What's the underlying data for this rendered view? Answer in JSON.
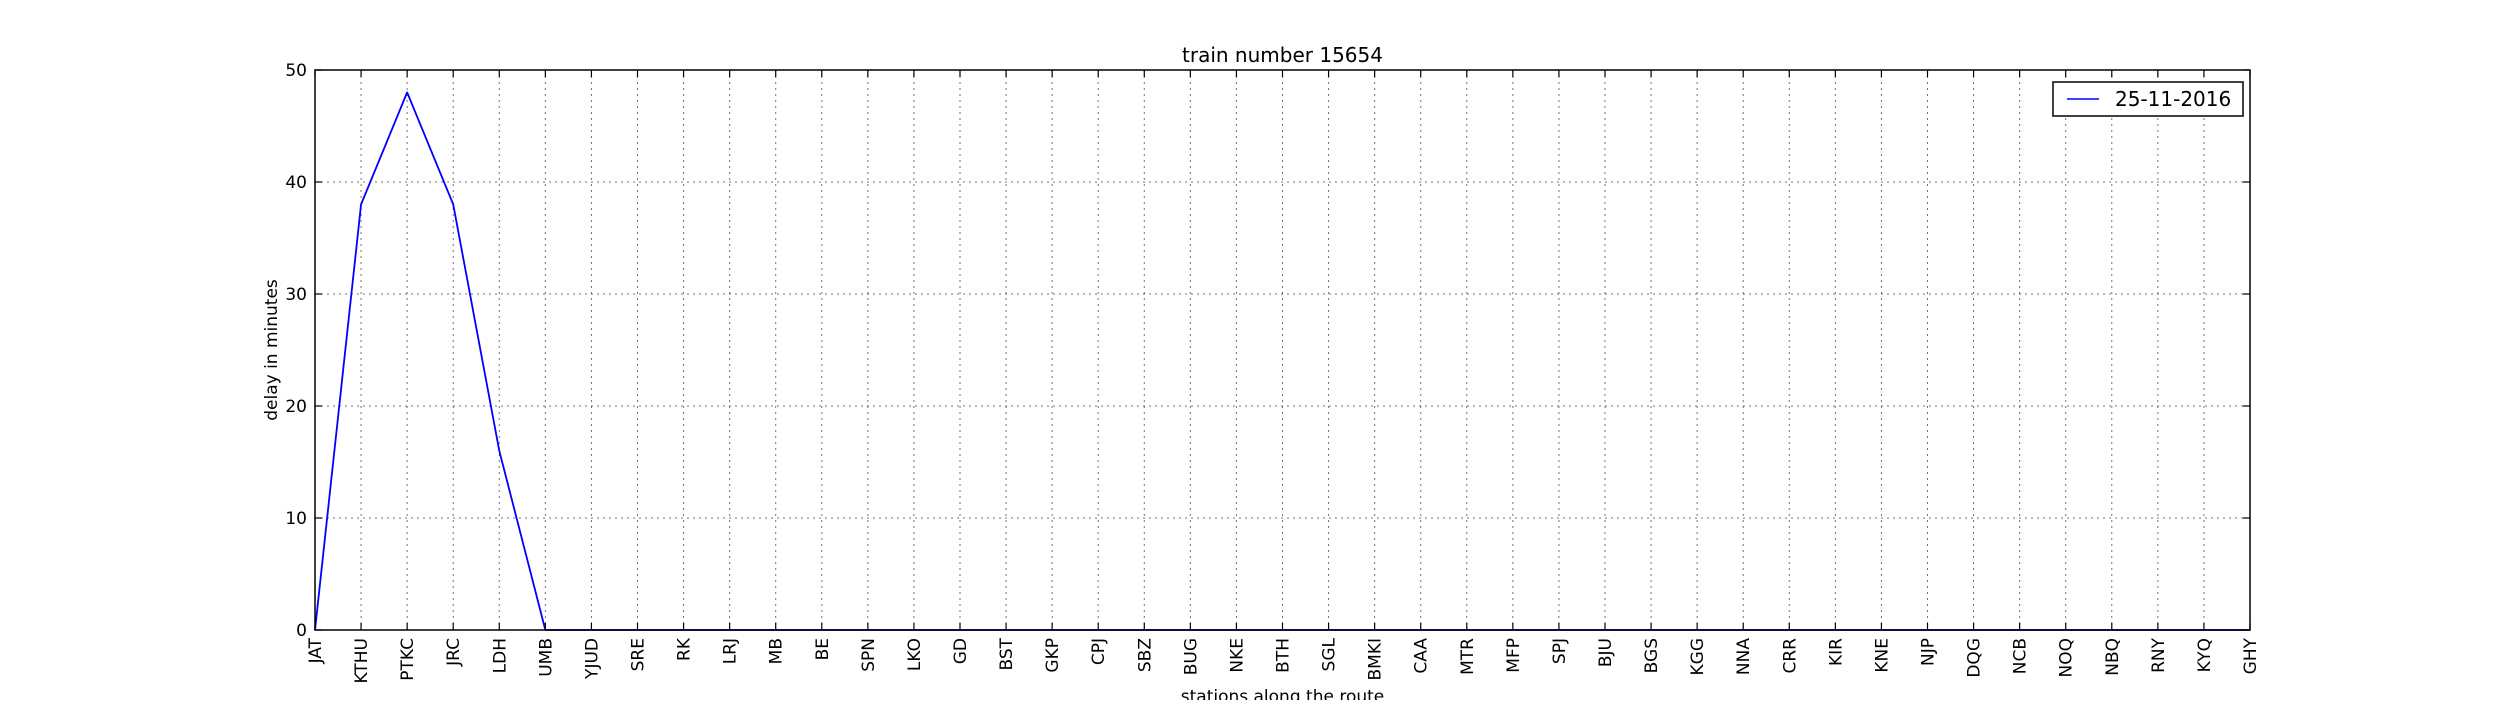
{
  "chart_data": {
    "type": "line",
    "title": "train number 15654",
    "xlabel": "stations along the route",
    "ylabel": "delay in minutes",
    "ylim": [
      0,
      50
    ],
    "yticks": [
      0,
      10,
      20,
      30,
      40,
      50
    ],
    "grid": true,
    "legend_position": "top-right",
    "categories": [
      "JAT",
      "KTHU",
      "PTKC",
      "JRC",
      "LDH",
      "UMB",
      "YJUD",
      "SRE",
      "RK",
      "LRJ",
      "MB",
      "BE",
      "SPN",
      "LKO",
      "GD",
      "BST",
      "GKP",
      "CPJ",
      "SBZ",
      "BUG",
      "NKE",
      "BTH",
      "SGL",
      "BMKI",
      "CAA",
      "MTR",
      "MFP",
      "SPJ",
      "BJU",
      "BGS",
      "KGG",
      "NNA",
      "CRR",
      "KIR",
      "KNE",
      "NJP",
      "DQG",
      "NCB",
      "NOQ",
      "NBQ",
      "RNY",
      "KYQ",
      "GHY"
    ],
    "series": [
      {
        "name": "25-11-2016",
        "color": "#0000ff",
        "values": [
          0,
          38,
          48,
          38,
          16,
          0,
          0,
          0,
          0,
          0,
          0,
          0,
          0,
          0,
          0,
          0,
          0,
          0,
          0,
          0,
          0,
          0,
          0,
          0,
          0,
          0,
          0,
          0,
          0,
          0,
          0,
          0,
          0,
          0,
          0,
          0,
          0,
          0,
          0,
          0,
          0,
          0,
          0
        ]
      }
    ]
  }
}
